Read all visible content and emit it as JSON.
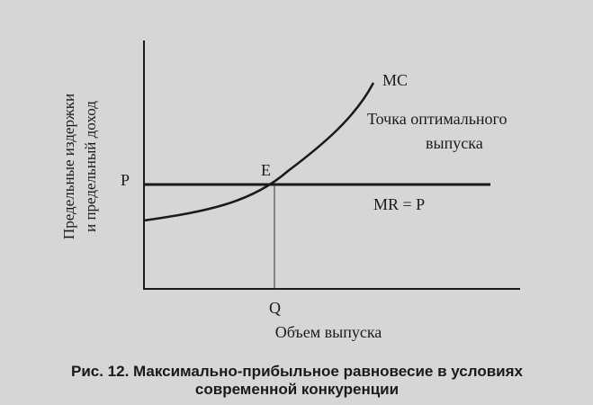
{
  "axes": {
    "y_label": [
      "Предельные издержки",
      "и предельный доход"
    ],
    "x_label": "Объем выпуска"
  },
  "labels": {
    "mc": "MC",
    "optimum": [
      "Точка оптимального",
      "выпуска"
    ],
    "p": "P",
    "e": "E",
    "mr": "MR = P",
    "q": "Q"
  },
  "caption": [
    "Рис. 12. Максимально-прибыльное равновесие в условиях",
    "современной конкуренции"
  ]
}
